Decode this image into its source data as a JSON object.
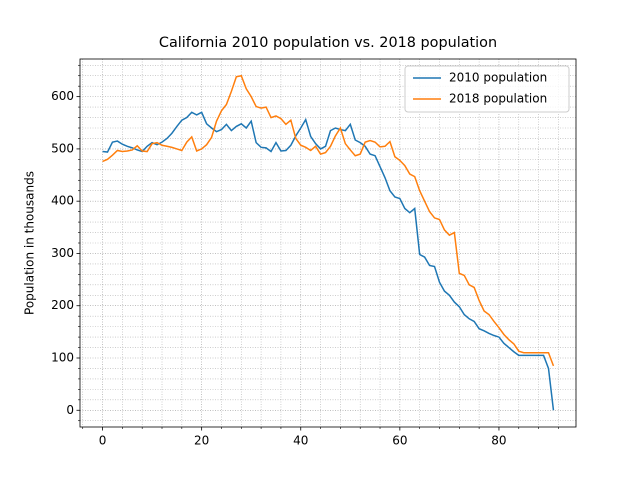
{
  "chart_data": {
    "type": "line",
    "title": "California 2010 population vs. 2018 population",
    "y_label": "Population in thousands",
    "x": [
      0,
      1,
      2,
      3,
      4,
      5,
      6,
      7,
      8,
      9,
      10,
      11,
      12,
      13,
      14,
      15,
      16,
      17,
      18,
      19,
      20,
      21,
      22,
      23,
      24,
      25,
      26,
      27,
      28,
      29,
      30,
      31,
      32,
      33,
      34,
      35,
      36,
      37,
      38,
      39,
      40,
      41,
      42,
      43,
      44,
      45,
      46,
      47,
      48,
      49,
      50,
      51,
      52,
      53,
      54,
      55,
      56,
      57,
      58,
      59,
      60,
      61,
      62,
      63,
      64,
      65,
      66,
      67,
      68,
      69,
      70,
      71,
      72,
      73,
      74,
      75,
      76,
      77,
      78,
      79,
      80,
      81,
      82,
      83,
      84,
      85,
      86,
      87,
      88,
      89,
      90,
      91
    ],
    "series": [
      {
        "name": "2010 population",
        "color": "#1f77b4",
        "values": [
          495,
          494,
          513,
          515,
          509,
          505,
          502,
          498,
          495,
          505,
          512,
          508,
          513,
          520,
          530,
          543,
          555,
          560,
          570,
          565,
          570,
          548,
          540,
          533,
          537,
          547,
          535,
          543,
          548,
          540,
          553,
          512,
          503,
          502,
          495,
          512,
          496,
          497,
          507,
          525,
          540,
          556,
          524,
          510,
          500,
          505,
          535,
          540,
          537,
          535,
          547,
          517,
          512,
          505,
          490,
          487,
          466,
          445,
          420,
          408,
          405,
          386,
          378,
          386,
          298,
          293,
          277,
          275,
          245,
          228,
          220,
          207,
          198,
          183,
          175,
          170,
          156,
          152,
          147,
          143,
          140,
          128,
          120,
          112,
          105,
          105,
          105,
          105,
          105,
          105,
          80,
          0
        ]
      },
      {
        "name": "2018 population",
        "color": "#ff7f0e",
        "values": [
          476,
          480,
          488,
          497,
          495,
          496,
          498,
          506,
          496,
          495,
          510,
          512,
          507,
          505,
          503,
          500,
          497,
          513,
          523,
          496,
          500,
          508,
          522,
          553,
          573,
          585,
          610,
          638,
          640,
          615,
          600,
          581,
          578,
          580,
          560,
          563,
          558,
          547,
          555,
          520,
          507,
          503,
          497,
          505,
          490,
          493,
          505,
          525,
          540,
          510,
          498,
          487,
          490,
          513,
          516,
          513,
          504,
          505,
          514,
          485,
          478,
          468,
          452,
          447,
          420,
          400,
          380,
          368,
          365,
          345,
          335,
          340,
          262,
          258,
          240,
          235,
          210,
          190,
          183,
          170,
          158,
          145,
          135,
          127,
          113,
          110,
          110,
          110,
          110,
          110,
          110,
          85
        ]
      }
    ],
    "xlim": [
      -4.55,
      95.55
    ],
    "ylim": [
      -32,
      672
    ],
    "xticks": [
      0,
      20,
      40,
      60,
      80
    ],
    "yticks": [
      0,
      100,
      200,
      300,
      400,
      500,
      600
    ],
    "xminorticks": [
      -4,
      4,
      8,
      12,
      16,
      24,
      28,
      32,
      36,
      44,
      48,
      52,
      56,
      64,
      68,
      72,
      76,
      84,
      88,
      92
    ],
    "yminorticks": [
      -20,
      20,
      40,
      60,
      80,
      120,
      140,
      160,
      180,
      220,
      240,
      260,
      280,
      320,
      340,
      360,
      380,
      420,
      440,
      460,
      480,
      520,
      540,
      560,
      580,
      620,
      640,
      660
    ],
    "grid": true,
    "legend": "upper right"
  }
}
